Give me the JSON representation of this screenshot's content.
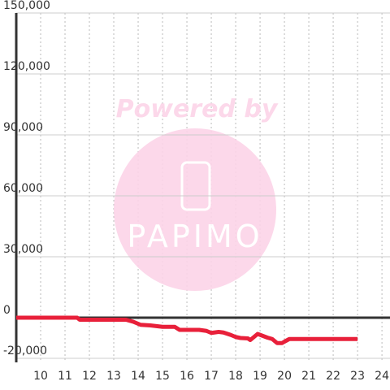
{
  "chart_data": {
    "type": "line",
    "watermark": {
      "line1": "Powered by",
      "line2": "PAPIMO"
    },
    "x": [
      9,
      11.5,
      11.6,
      13.5,
      13.8,
      14.1,
      14.5,
      15,
      15.5,
      15.7,
      16.5,
      16.8,
      17,
      17.3,
      17.5,
      17.8,
      18,
      18.2,
      18.5,
      18.6,
      18.9,
      19.3,
      19.5,
      19.7,
      19.9,
      20,
      20.2,
      23
    ],
    "series": [
      {
        "color": "#e8203a",
        "values": [
          0,
          0,
          -1000,
          -1000,
          -2000,
          -3500,
          -3800,
          -4500,
          -4500,
          -6000,
          -6000,
          -6500,
          -7500,
          -7000,
          -7300,
          -8500,
          -9500,
          -10000,
          -10200,
          -11000,
          -8000,
          -9800,
          -10500,
          -12500,
          -12500,
          -11800,
          -10500,
          -10500
        ]
      }
    ],
    "xlim": [
      9,
      24.33
    ],
    "xticks": [
      10,
      11,
      12,
      13,
      14,
      15,
      16,
      17,
      18,
      19,
      20,
      21,
      22,
      23,
      24
    ],
    "ylim": [
      -22000,
      150000
    ],
    "yticks": [
      {
        "value": -20000,
        "label": "-20,000"
      },
      0,
      {
        "value": 30000,
        "label": "30,000"
      },
      {
        "value": 60000,
        "label": "60,000"
      },
      {
        "value": 90000,
        "label": "90,000"
      },
      {
        "value": 120000,
        "label": "120,000"
      },
      {
        "value": 150000,
        "label": "150,000"
      }
    ],
    "grid": true
  }
}
